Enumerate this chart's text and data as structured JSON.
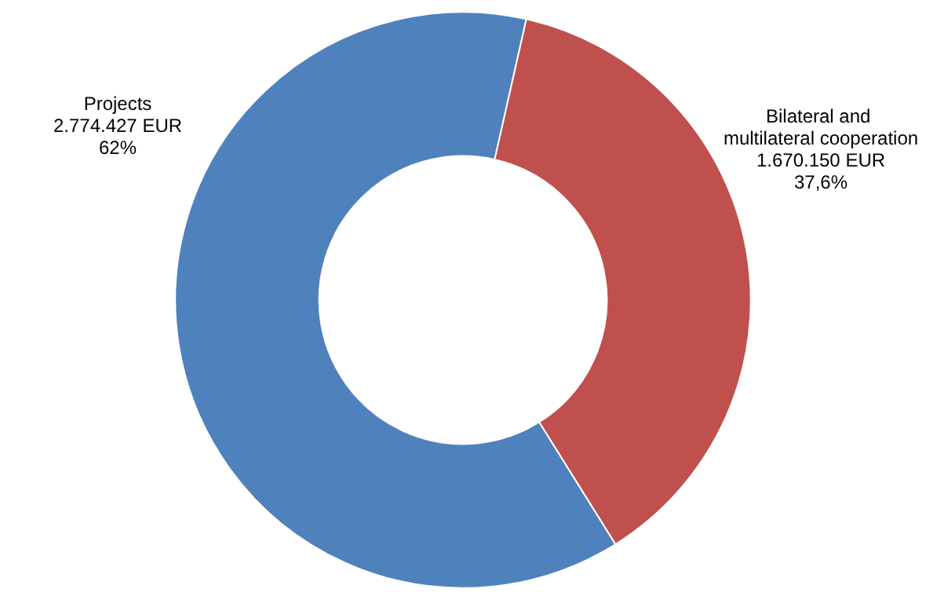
{
  "chart_data": {
    "type": "donut",
    "categories": [
      "Projects",
      "Bilateral and multilateral cooperation"
    ],
    "values": [
      2774427,
      1670150
    ],
    "value_labels": [
      "2.774.427 EUR\n62%",
      "1.670.150 EUR\n37,6%"
    ],
    "colors": [
      "#4f81bd",
      "#c0504d"
    ],
    "legend": false
  }
}
